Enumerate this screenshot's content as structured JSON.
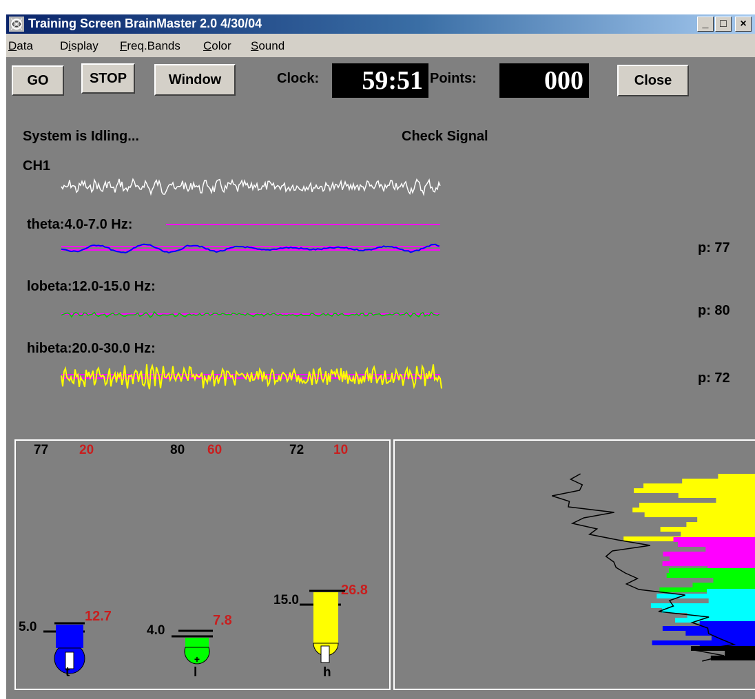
{
  "window": {
    "title": "Training Screen  BrainMaster 2.0 4/30/04",
    "minimize": "_",
    "maximize": "□",
    "close": "×"
  },
  "menu": [
    "Data",
    "Display",
    "Freq.Bands",
    "Color",
    "Sound"
  ],
  "menu_underline": [
    "D",
    "i",
    "F",
    "C",
    "S"
  ],
  "toolbar": {
    "go": "GO",
    "stop": "STOP",
    "window": "Window",
    "clock_label": "Clock:",
    "clock_value": "59:51",
    "points_label": "Points:",
    "points_value": "000",
    "close": "Close"
  },
  "status": {
    "system": "System is Idling...",
    "signal": "Check Signal"
  },
  "channels": {
    "ch1": "CH1",
    "theta": {
      "label": "theta:4.0-7.0 Hz:",
      "p": "p:  77"
    },
    "lobeta": {
      "label": "lobeta:12.0-15.0 Hz:",
      "p": "p:  80"
    },
    "hibeta": {
      "label": "hibeta:20.0-30.0 Hz:",
      "p": "p:  72"
    }
  },
  "meters": {
    "top": {
      "t_pct": "77",
      "t_pct2": "20",
      "l_pct": "80",
      "l_pct2": "60",
      "h_pct": "72",
      "h_pct2": "10"
    },
    "t": {
      "label": "t",
      "threshold": "5.0",
      "value": "12.7",
      "color": "#0000ff"
    },
    "l": {
      "label": "l",
      "threshold": "4.0",
      "value": "7.8",
      "color": "#00ff00"
    },
    "h": {
      "label": "h",
      "threshold": "15.0",
      "value": "26.8",
      "color": "#ffff00"
    }
  },
  "colors": {
    "background": "#808080",
    "wave_ch1": "#ffffff",
    "wave_theta": "#0000ff",
    "wave_lobeta": "#00cc00",
    "wave_hibeta": "#ffff00",
    "threshold_line": "#ff00ff",
    "value_red": "#c81e1e"
  }
}
